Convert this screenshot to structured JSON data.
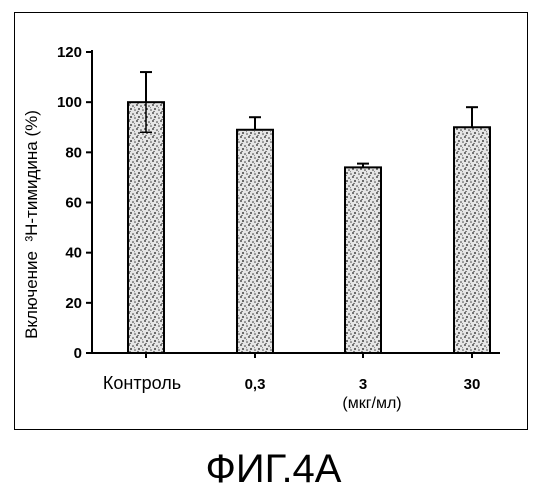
{
  "chart_data": {
    "type": "bar",
    "categories": [
      "Контроль",
      "0,3",
      "3",
      "30"
    ],
    "values": [
      100,
      89,
      74,
      90
    ],
    "errors": [
      12,
      5,
      1.5,
      8
    ],
    "ylabel": "Включение  ³Н-тимидина (%)",
    "xlabel": "(мкг/мл)",
    "ylim": [
      0,
      120
    ],
    "yticks": [
      0,
      20,
      40,
      60,
      80,
      100,
      120
    ],
    "grid": false,
    "bar_fill": "stippled"
  },
  "caption": "ФИГ.4А"
}
